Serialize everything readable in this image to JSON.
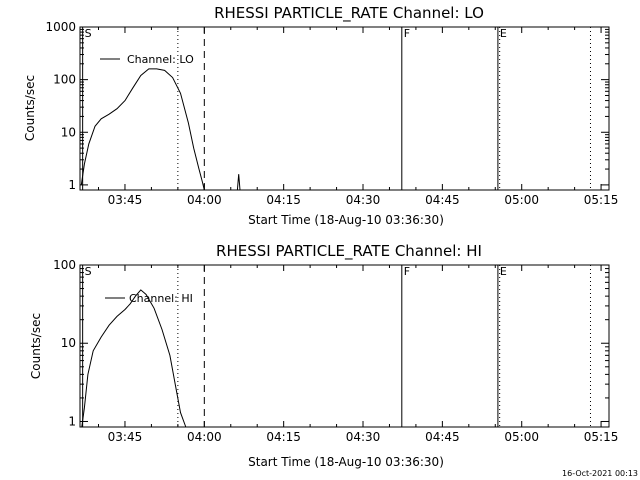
{
  "footer_timestamp": "16-Oct-2021 00:13",
  "chart_data": [
    {
      "type": "line",
      "title": "RHESSI PARTICLE_RATE Channel: LO",
      "xlabel": "Start Time (18-Aug-10 03:36:30)",
      "ylabel": "Counts/sec",
      "y_scale": "log",
      "xlim": [
        "03:36:30",
        "05:16:30"
      ],
      "ylim": [
        0.8,
        1000
      ],
      "x_tick_labels": [
        "03:45",
        "04:00",
        "04:15",
        "04:30",
        "04:45",
        "05:00",
        "05:15"
      ],
      "y_tick_labels": [
        "1",
        "10",
        "100",
        "1000"
      ],
      "legend": {
        "position": "top-left",
        "entries": [
          "Channel: LO"
        ]
      },
      "vertical_markers": [
        {
          "time": "03:37:00",
          "style": "solid",
          "label": "S"
        },
        {
          "time": "03:55:00",
          "style": "dotted",
          "label": ""
        },
        {
          "time": "04:00:00",
          "style": "dashed",
          "label": ""
        },
        {
          "time": "04:37:20",
          "style": "solid",
          "label": "F"
        },
        {
          "time": "04:55:30",
          "style": "solid",
          "label": "E"
        },
        {
          "time": "04:55:50",
          "style": "dotted",
          "label": ""
        },
        {
          "time": "05:13:00",
          "style": "dotted",
          "label": ""
        }
      ],
      "series": [
        {
          "name": "Channel: LO",
          "x": [
            "03:36:45",
            "03:37:20",
            "03:38:10",
            "03:39:20",
            "03:40:30",
            "03:42:00",
            "03:43:30",
            "03:45:00",
            "03:46:30",
            "03:48:00",
            "03:49:30",
            "03:51:00",
            "03:52:30",
            "03:54:00",
            "03:55:30",
            "03:57:00",
            "03:58:00",
            "03:59:00",
            "03:59:40",
            "04:00:00"
          ],
          "y": [
            1.0,
            2.5,
            6,
            13,
            18,
            22,
            28,
            40,
            70,
            120,
            160,
            160,
            150,
            110,
            55,
            15,
            5,
            2,
            1.1,
            0.8
          ]
        },
        {
          "name": "",
          "x": [
            "04:06:15",
            "04:06:30",
            "04:06:45"
          ],
          "y": [
            0.8,
            1.6,
            0.8
          ]
        }
      ]
    },
    {
      "type": "line",
      "title": "RHESSI PARTICLE_RATE Channel: HI",
      "xlabel": "Start Time (18-Aug-10 03:36:30)",
      "ylabel": "Counts/sec",
      "y_scale": "log",
      "xlim": [
        "03:36:30",
        "05:16:30"
      ],
      "ylim": [
        0.85,
        100
      ],
      "x_tick_labels": [
        "03:45",
        "04:00",
        "04:15",
        "04:30",
        "04:45",
        "05:00",
        "05:15"
      ],
      "y_tick_labels": [
        "1",
        "10",
        "100"
      ],
      "legend": {
        "position": "top-left",
        "entries": [
          "Channel: HI"
        ]
      },
      "vertical_markers": [
        {
          "time": "03:37:00",
          "style": "solid",
          "label": "S"
        },
        {
          "time": "03:55:00",
          "style": "dotted",
          "label": ""
        },
        {
          "time": "04:00:00",
          "style": "dashed",
          "label": ""
        },
        {
          "time": "04:37:20",
          "style": "solid",
          "label": "F"
        },
        {
          "time": "04:55:30",
          "style": "solid",
          "label": "E"
        },
        {
          "time": "04:55:50",
          "style": "dotted",
          "label": ""
        },
        {
          "time": "05:13:00",
          "style": "dotted",
          "label": ""
        }
      ],
      "series": [
        {
          "name": "Channel: HI",
          "x": [
            "03:36:50",
            "03:37:20",
            "03:38:00",
            "03:39:00",
            "03:40:30",
            "03:42:00",
            "03:43:30",
            "03:45:00",
            "03:46:00",
            "03:47:00",
            "03:48:00",
            "03:49:00",
            "03:50:30",
            "03:52:00",
            "03:53:30",
            "03:54:30",
            "03:55:30",
            "03:56:30"
          ],
          "y": [
            0.85,
            1.5,
            4,
            8,
            12,
            17,
            22,
            27,
            32,
            40,
            48,
            42,
            28,
            15,
            7,
            3,
            1.3,
            0.85
          ]
        }
      ]
    }
  ]
}
